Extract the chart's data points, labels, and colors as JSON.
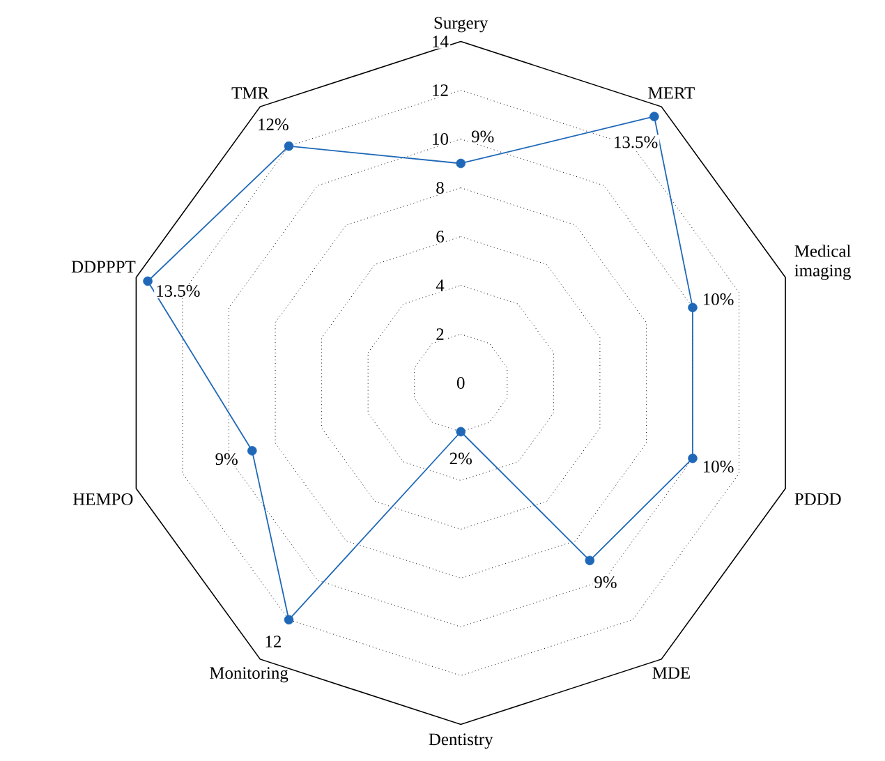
{
  "chart_data": {
    "type": "radar",
    "categories": [
      "Surgery",
      "MERT",
      "Medical imaging",
      "PDDD",
      "MDE",
      "Dentistry",
      "Monitoring",
      "HEMPO",
      "DDPPPT",
      "TMR"
    ],
    "series": [
      {
        "color": "#1f68b8",
        "values": [
          9,
          13.5,
          10,
          10,
          9,
          2,
          12,
          9,
          13.5,
          12
        ]
      }
    ],
    "value_labels": [
      "9%",
      "13.5%",
      "10%",
      "10%",
      "9%",
      "2%",
      "12",
      "9%",
      "13.5%",
      "12%"
    ],
    "ylim": [
      0,
      14
    ],
    "yticks": [
      0,
      2,
      4,
      6,
      8,
      10,
      12,
      14
    ],
    "grid": true,
    "marker": "circle"
  }
}
